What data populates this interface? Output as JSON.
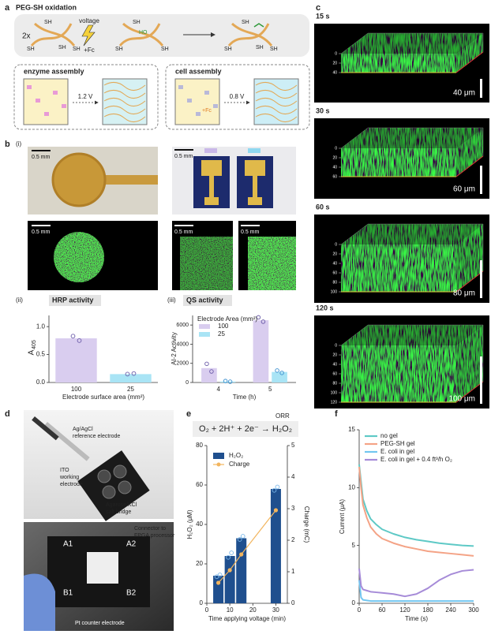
{
  "panel_labels": {
    "a": "a",
    "b": "b",
    "c": "c",
    "d": "d",
    "e": "e",
    "f": "f"
  },
  "a": {
    "title": "PEG-SH oxidation",
    "multiplier": "2x",
    "stimulus": [
      "voltage",
      "+Fc"
    ],
    "intermediate": "HO",
    "thiol": "SH",
    "enzyme": {
      "title": "enzyme assembly",
      "voltage": "1.2 V"
    },
    "cell": {
      "title": "cell assembly",
      "voltage": "0.8 V",
      "mediator": "+Fc"
    }
  },
  "b": {
    "sublabels": [
      "(i)",
      "(ii)",
      "(iii)"
    ],
    "scale_bar": "0.5 mm",
    "hrp": {
      "type": "bar",
      "title": "HRP activity",
      "categories": [
        "100",
        "25"
      ],
      "values": [
        0.79,
        0.15
      ],
      "replicates": [
        [
          0.83,
          0.75
        ],
        [
          0.15,
          0.16
        ]
      ],
      "colors": [
        "#d9cdef",
        "#a9e4f5"
      ],
      "point_color": "#6a5aa8",
      "ylim": [
        0,
        1.2
      ],
      "yticks": [
        {
          "value": 0,
          "label": "0.0"
        },
        {
          "value": 0.5,
          "label": "0.5"
        },
        {
          "value": 1.0,
          "label": "1.0"
        }
      ],
      "ylabel_main": "A",
      "ylabel_sub": "405",
      "xlabel": "Electrode surface area (mm²)"
    },
    "qs": {
      "type": "bar",
      "title": "QS activity",
      "categories": [
        "4",
        "5"
      ],
      "series": [
        {
          "name": "100",
          "color": "#d9cdef",
          "point_color": "#6a5aa8",
          "values": [
            1500,
            6500
          ],
          "replicates": [
            [
              1950,
              1150
            ],
            [
              6800,
              6350
            ]
          ]
        },
        {
          "name": "25",
          "color": "#a9e4f5",
          "point_color": "#3a8fcf",
          "values": [
            100,
            1100
          ],
          "replicates": [
            [
              150,
              80
            ],
            [
              1250,
              1000
            ]
          ]
        }
      ],
      "legend_title": "Electrode Area (mm²)",
      "ylim": [
        0,
        7000
      ],
      "yticks": [
        0,
        2000,
        4000,
        6000
      ],
      "ylabel": "AI-2 Activity",
      "xlabel": "Time (h)"
    }
  },
  "c": {
    "times": [
      "15 s",
      "30 s",
      "60 s",
      "120 s"
    ],
    "scale_bars": [
      {
        "value": 40,
        "label": "40 μm"
      },
      {
        "value": 60,
        "label": "60 μm"
      },
      {
        "value": 80,
        "label": "80 μm"
      },
      {
        "value": 100,
        "label": "100 μm"
      }
    ],
    "depth_ticks": [
      [
        0,
        20,
        40
      ],
      [
        0,
        20,
        40,
        60
      ],
      [
        0,
        20,
        40,
        60,
        80,
        100
      ],
      [
        0,
        20,
        40,
        60,
        80,
        100,
        120
      ]
    ]
  },
  "d": {
    "reference": [
      "Ag/AgCl",
      "reference electrode"
    ],
    "working": [
      "ITO",
      "working",
      "electrode"
    ],
    "bridge": [
      "Agarose/KCl",
      "salt bridge"
    ],
    "connector": [
      "Connector to",
      "FPGA processor"
    ],
    "counter": "Pt counter electrode",
    "ports": [
      "A1",
      "A2",
      "B1",
      "B2"
    ]
  },
  "e": {
    "type": "bar",
    "equation": "O₂ + 2H⁺ + 2e⁻ → H₂O₂",
    "reaction": "ORR",
    "x": [
      5,
      10,
      15,
      30
    ],
    "series": [
      {
        "name": "H₂O₂",
        "color": "#1f4f8e",
        "values": [
          14,
          24,
          33,
          58
        ],
        "replicates": [
          [
            13.5,
            14.4
          ],
          [
            23.3,
            25.6
          ],
          [
            32.4,
            34.0
          ],
          [
            57.3,
            59.0
          ]
        ]
      },
      {
        "name": "Charge",
        "color": "#f2b55e",
        "axis": "y2",
        "values": [
          0.65,
          1.05,
          1.55,
          2.95
        ]
      }
    ],
    "xlim": [
      0,
      35
    ],
    "xticks": [
      0,
      10,
      20,
      30
    ],
    "ylim": [
      0,
      80
    ],
    "yticks": [
      0,
      20,
      40,
      60,
      80
    ],
    "y2lim": [
      0,
      5
    ],
    "y2ticks": [
      0,
      1,
      2,
      3,
      4,
      5
    ],
    "ylabel": "H₂O₂ (μM)",
    "y2label": "Charge (mC)",
    "xlabel": "Time applying voltage (min)"
  },
  "f": {
    "type": "line",
    "x": [
      0,
      5,
      10,
      20,
      30,
      45,
      60,
      90,
      120,
      150,
      180,
      210,
      240,
      270,
      300
    ],
    "series": [
      {
        "name": "no gel",
        "color": "#5ec9c6",
        "values": [
          12,
          10.5,
          9,
          8,
          7.3,
          6.8,
          6.4,
          6.0,
          5.7,
          5.5,
          5.35,
          5.2,
          5.1,
          5.0,
          4.95
        ]
      },
      {
        "name": "PEG-SH gel",
        "color": "#f4a386",
        "values": [
          11.8,
          10,
          8.5,
          7.4,
          6.6,
          6.0,
          5.6,
          5.2,
          4.9,
          4.7,
          4.5,
          4.4,
          4.3,
          4.2,
          4.1
        ]
      },
      {
        "name": "E. coli in gel",
        "color": "#72c6f0",
        "values": [
          2,
          0.5,
          0.3,
          0.25,
          0.2,
          0.2,
          0.2,
          0.2,
          0.2,
          0.2,
          0.2,
          0.2,
          0.2,
          0.2,
          0.2
        ]
      },
      {
        "name": "E. coli in gel + 0.4 ft³/h O₂",
        "color": "#a68bd8",
        "values": [
          3,
          1.5,
          1.2,
          1.1,
          1.0,
          0.95,
          0.9,
          0.8,
          0.6,
          0.8,
          1.3,
          2.0,
          2.5,
          2.8,
          2.9
        ]
      }
    ],
    "xlim": [
      0,
      300
    ],
    "xticks": [
      0,
      60,
      120,
      180,
      240,
      300
    ],
    "ylim": [
      0,
      15
    ],
    "yticks": [
      0,
      5,
      10,
      15
    ],
    "ylabel": "Current (μA)",
    "xlabel": "Time (s)"
  }
}
